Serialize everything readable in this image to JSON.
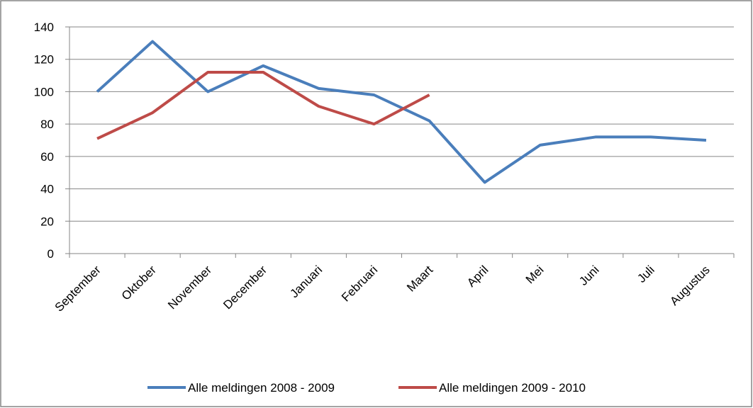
{
  "chart_data": {
    "type": "line",
    "categories": [
      "September",
      "Oktober",
      "November",
      "December",
      "Januari",
      "Februari",
      "Maart",
      "April",
      "Mei",
      "Juni",
      "Juli",
      "Augustus"
    ],
    "series": [
      {
        "name": "Alle meldingen 2008 - 2009",
        "color": "#4a7ebb",
        "values": [
          100,
          131,
          100,
          116,
          102,
          98,
          82,
          44,
          67,
          72,
          72,
          70
        ]
      },
      {
        "name": "Alle meldingen 2009 - 2010",
        "color": "#be4b48",
        "values": [
          71,
          87,
          112,
          112,
          91,
          80,
          98,
          null,
          null,
          null,
          null,
          null
        ]
      }
    ],
    "ylim": [
      0,
      140
    ],
    "yticks": [
      0,
      20,
      40,
      60,
      80,
      100,
      120,
      140
    ],
    "grid": true,
    "legend": "bottom"
  }
}
